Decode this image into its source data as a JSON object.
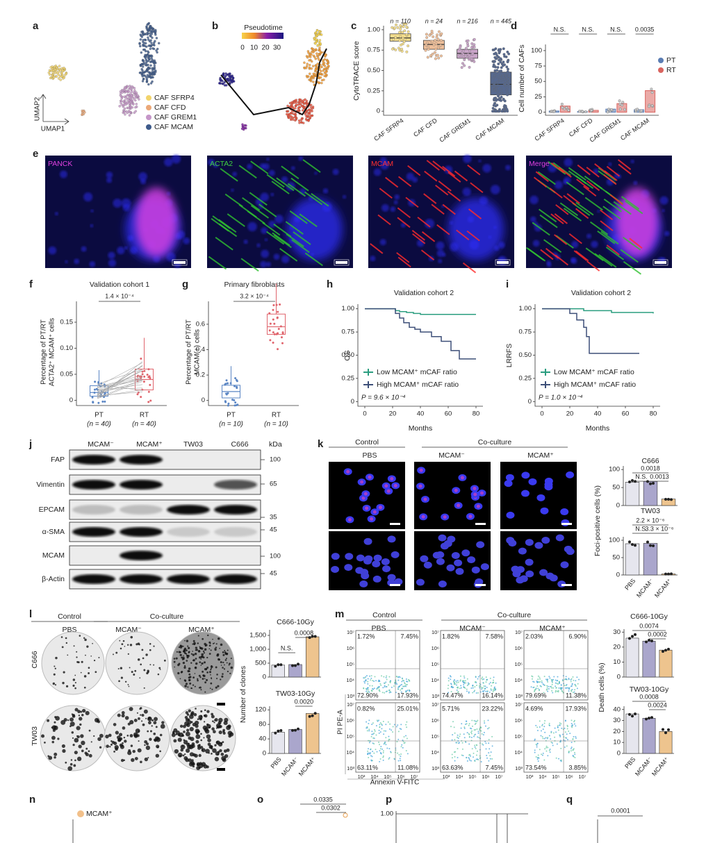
{
  "a": {
    "label": "a",
    "legend": [
      "CAF SFRP4",
      "CAF CFD",
      "CAF GREM1",
      "CAF MCAM"
    ],
    "colors": [
      "#f2d46b",
      "#eba877",
      "#c596c8",
      "#3d5a8a"
    ],
    "axis_y": "UMAP2",
    "axis_x": "UMAP1"
  },
  "b": {
    "label": "b",
    "scale_title": "Pseudotime",
    "scale_ticks": [
      0,
      10,
      20,
      30
    ]
  },
  "c": {
    "label": "c",
    "ylabel": "CytoTRACE score",
    "n": [
      "n = 110",
      "n = 24",
      "n = 216",
      "n = 445"
    ],
    "categories": [
      "CAF SFRP4",
      "CAF CFD",
      "CAF GREM1",
      "CAF MCAM"
    ],
    "colors": [
      "#f2dc8c",
      "#eebf9a",
      "#c9a5c8",
      "#56688e"
    ],
    "ylim": [
      -0.05,
      1.05
    ],
    "yticks": [
      0,
      0.25,
      {
        "value": 0.5,
        "label": "0.50"
      },
      0.75,
      {
        "value": 1,
        "label": "1.00"
      }
    ],
    "boxes": [
      [
        0.86,
        0.9,
        0.95
      ],
      [
        0.76,
        0.82,
        0.87
      ],
      [
        0.65,
        0.71,
        0.76
      ],
      [
        0.2,
        0.33,
        0.48
      ]
    ]
  },
  "d": {
    "label": "d",
    "ylabel": "Cell number of CAFs",
    "categories": [
      "CAF SFRP4",
      "CAF CFD",
      "CAF GREM1",
      "CAF MCAM"
    ],
    "sig": [
      "N.S.",
      "N.S.",
      "N.S.",
      "0.0035"
    ],
    "ylim": [
      -5,
      110
    ],
    "yticks": [
      0,
      25,
      50,
      75,
      100
    ],
    "series": [
      {
        "name": "PT",
        "color": "#5b7db3",
        "values": [
          2,
          1,
          5,
          4
        ]
      },
      {
        "name": "RT",
        "color": "#d9645f",
        "values": [
          10,
          3,
          14,
          35
        ]
      }
    ]
  },
  "e": {
    "label": "e",
    "channels": [
      "PANCK",
      "ACTA2",
      "MCAM",
      "Merge"
    ],
    "channel_colors": [
      "#e040e0",
      "#40d040",
      "#ff3030",
      "#e040e0"
    ]
  },
  "f": {
    "label": "f",
    "title": "Validation cohort 1",
    "p": "1.4 × 10⁻⁴",
    "ylabel": [
      "Percentage of PT/RT",
      "ACTA2⁺ MCAM⁺ cells"
    ],
    "categories": [
      "PT",
      "RT"
    ],
    "n": [
      "(n = 40)",
      "(n = 40)"
    ],
    "colors": [
      "#5b86c4",
      "#e0646c"
    ],
    "ylim": [
      -0.01,
      0.19
    ],
    "yticks": [
      0,
      0.05,
      {
        "value": 0.1,
        "label": "0.10"
      },
      0.15
    ],
    "boxes": [
      [
        0.008,
        0.015,
        0.028
      ],
      [
        0.02,
        0.04,
        0.06
      ]
    ]
  },
  "g": {
    "label": "g",
    "title": "Primary fibroblasts",
    "p": "3.2 × 10⁻⁴",
    "ylabel": [
      "Percentage of PT/RT",
      "MCAM(+) cells"
    ],
    "categories": [
      "PT",
      "RT"
    ],
    "n": [
      "(n = 10)",
      "(n = 10)"
    ],
    "colors": [
      "#5b86c4",
      "#e0646c"
    ],
    "ylim": [
      -0.04,
      0.78
    ],
    "yticks": [
      0,
      0.2,
      0.4,
      0.6
    ],
    "boxes": [
      [
        0.02,
        0.07,
        0.12
      ],
      [
        0.52,
        0.58,
        0.68
      ]
    ]
  },
  "h": {
    "label": "h",
    "title": "Validation cohort 2",
    "ylabel": "OS",
    "xlabel": "Months",
    "p": "P = 9.6 × 10⁻⁴",
    "xlim": [
      -5,
      85
    ],
    "xticks": [
      0,
      20,
      40,
      60,
      80
    ],
    "ylim": [
      -0.05,
      1.05
    ],
    "yticks": [
      0,
      0.25,
      {
        "value": 0.5,
        "label": "0.50"
      },
      0.75,
      {
        "value": 1,
        "label": "1.00"
      }
    ],
    "series": [
      {
        "name": "Low MCAM⁺ mCAF ratio",
        "color": "#2a9d7f",
        "x": [
          0,
          20,
          22,
          25,
          30,
          35,
          40,
          80
        ],
        "values": [
          1,
          1,
          0.98,
          0.97,
          0.96,
          0.95,
          0.94,
          0.94
        ]
      },
      {
        "name": "High MCAM⁺ mCAF ratio",
        "color": "#3d4f78",
        "x": [
          0,
          18,
          22,
          25,
          28,
          32,
          36,
          40,
          48,
          55,
          62,
          68,
          80
        ],
        "values": [
          1,
          1,
          0.95,
          0.9,
          0.85,
          0.8,
          0.78,
          0.75,
          0.7,
          0.65,
          0.55,
          0.46,
          0.46
        ]
      }
    ]
  },
  "i": {
    "label": "i",
    "title": "Validation cohort 2",
    "ylabel": "LRRFS",
    "xlabel": "Months",
    "p": "P = 1.0 × 10⁻⁴",
    "xlim": [
      -5,
      85
    ],
    "xticks": [
      0,
      20,
      40,
      60,
      80
    ],
    "ylim": [
      -0.05,
      1.05
    ],
    "yticks": [
      0,
      0.25,
      {
        "value": 0.5,
        "label": "0.50"
      },
      0.75,
      {
        "value": 1,
        "label": "1.00"
      }
    ],
    "series": [
      {
        "name": "Low MCAM⁺ mCAF ratio",
        "color": "#2a9d7f",
        "x": [
          0,
          30,
          50,
          80
        ],
        "values": [
          1,
          0.98,
          0.96,
          0.95
        ]
      },
      {
        "name": "High MCAM⁺ mCAF ratio",
        "color": "#3d4f78",
        "x": [
          0,
          20,
          25,
          30,
          32,
          34,
          70
        ],
        "values": [
          1,
          0.95,
          0.88,
          0.8,
          0.7,
          0.52,
          0.52
        ]
      }
    ]
  },
  "j": {
    "label": "j",
    "columns": [
      "MCAM⁻",
      "MCAM⁺",
      "TW03",
      "C666"
    ],
    "unit": "kDa",
    "rows": [
      "FAP",
      "Vimentin",
      "EPCAM",
      "α-SMA",
      "MCAM",
      "β-Actin"
    ],
    "markers": [
      100,
      65,
      35,
      45,
      100,
      45
    ]
  },
  "k": {
    "label": "k",
    "header": [
      "Control",
      "Co-culture"
    ],
    "columns": [
      "PBS",
      "MCAM⁻",
      "MCAM⁺"
    ],
    "rows": [
      "C666",
      "TW03"
    ],
    "ylabel": "Foci-positive cells (%)",
    "categories": [
      "PBS",
      "MCAM⁻",
      "MCAM⁺"
    ],
    "colors": [
      "#e6e6ee",
      "#aaa6cc",
      "#eec48e"
    ],
    "charts": [
      {
        "title": "C666",
        "sig": [
          "0.0018",
          "N.S.",
          "0.0013"
        ],
        "ylim": [
          0,
          110
        ],
        "yticks": [
          0,
          50,
          100
        ],
        "values": [
          65,
          67,
          18
        ]
      },
      {
        "title": "TW03",
        "sig": [
          "2.2 × 10⁻⁶",
          "N.S.",
          "3.3 × 10⁻⁶"
        ],
        "ylim": [
          0,
          110
        ],
        "yticks": [
          0,
          50,
          100
        ],
        "values": [
          90,
          91,
          3
        ]
      }
    ]
  },
  "l": {
    "label": "l",
    "header": [
      "Control",
      "Co-culture"
    ],
    "columns": [
      "PBS",
      "MCAM⁻",
      "MCAM⁺"
    ],
    "rows": [
      "C666",
      "TW03"
    ],
    "ylabel": "Number of clones",
    "categories": [
      "PBS",
      "MCAM⁻",
      "MCAM⁺"
    ],
    "colors": [
      "#e6e6ee",
      "#aaa6cc",
      "#eec48e"
    ],
    "charts": [
      {
        "title": "C666-10Gy",
        "sig": [
          "0.0008",
          "N.S."
        ],
        "ylim": [
          0,
          1700
        ],
        "yticks": [
          0,
          500,
          {
            "value": 1000,
            "label": "1,000"
          },
          {
            "value": 1500,
            "label": "1,500"
          }
        ],
        "values": [
          430,
          450,
          1450
        ]
      },
      {
        "title": "TW03-10Gy",
        "sig": [
          "0.0020"
        ],
        "ylim": [
          0,
          130
        ],
        "yticks": [
          0,
          40,
          80,
          120
        ],
        "values": [
          58,
          66,
          110
        ]
      }
    ]
  },
  "m": {
    "label": "m",
    "header": [
      "Control",
      "Co-culture"
    ],
    "columns": [
      "PBS",
      "MCAM⁻",
      "MCAM⁺"
    ],
    "ylabel_flow": "PI PE-A",
    "xlabel_flow": "Annexin V-FITC",
    "flow_ticks_y": [
      "10⁷",
      "10⁶",
      "10⁵",
      "10⁴",
      "10³"
    ],
    "flow_ticks_x": [
      "10³",
      "10⁴",
      "10⁵",
      "10⁶",
      "10⁷"
    ],
    "quadrants": [
      [
        [
          "1.72%",
          "7.45%",
          "72.90%",
          "17.93%"
        ],
        [
          "1.82%",
          "7.58%",
          "74.47%",
          "16.14%"
        ],
        [
          "2.03%",
          "6.90%",
          "79.69%",
          "11.38%"
        ]
      ],
      [
        [
          "0.82%",
          "25.01%",
          "63.11%",
          "11.08%"
        ],
        [
          "5.71%",
          "23.22%",
          "63.63%",
          "7.45%"
        ],
        [
          "4.69%",
          "17.93%",
          "73.54%",
          "3.85%"
        ]
      ]
    ],
    "ylabel": "Death cells (%)",
    "categories": [
      "PBS",
      "MCAM⁻",
      "MCAM⁺"
    ],
    "colors": [
      "#e6e6ee",
      "#aaa6cc",
      "#eec48e"
    ],
    "charts": [
      {
        "title": "C666-10Gy",
        "sig": [
          "0.0074",
          "0.0002"
        ],
        "ylim": [
          0,
          32
        ],
        "yticks": [
          0,
          10,
          20,
          30
        ],
        "values": [
          26,
          24,
          18
        ]
      },
      {
        "title": "TW03-10Gy",
        "sig": [
          "0.0008",
          "0.0024"
        ],
        "ylim": [
          0,
          43
        ],
        "yticks": [
          0,
          10,
          20,
          30,
          40
        ],
        "values": [
          36,
          32,
          20
        ]
      }
    ]
  },
  "n": {
    "label": "n",
    "legend": "MCAM⁺"
  },
  "o": {
    "label": "o",
    "sig": [
      "0.0335",
      "0.0302"
    ]
  },
  "p": {
    "label": "p",
    "ytick": "1.00"
  },
  "q": {
    "label": "q",
    "sig": [
      "0.0001"
    ]
  }
}
